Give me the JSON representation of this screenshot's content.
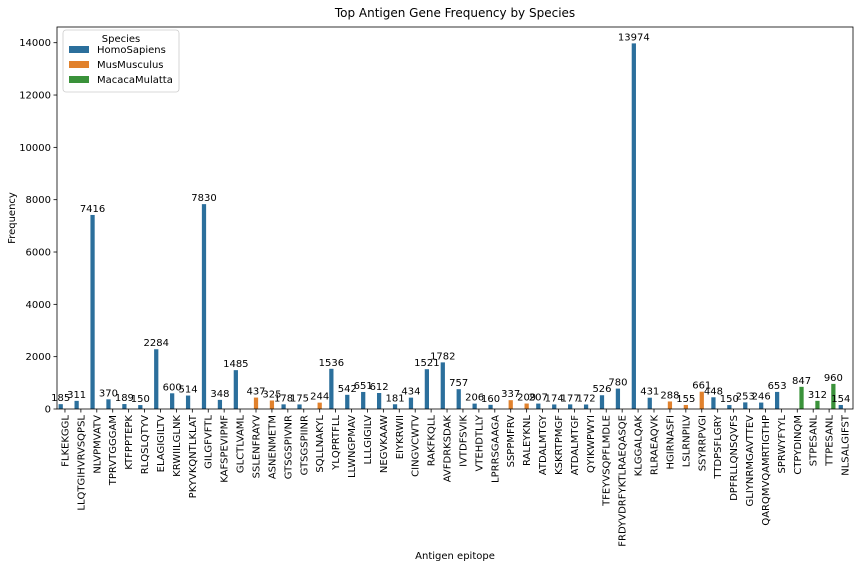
{
  "chart_data": {
    "type": "bar",
    "title": "Top Antigen Gene Frequency by Species",
    "xlabel": "Antigen epitope",
    "ylabel": "Frequency",
    "ylim": [
      0,
      14600
    ],
    "yticks": [
      0,
      2000,
      4000,
      6000,
      8000,
      10000,
      12000,
      14000
    ],
    "grid": false,
    "legend": {
      "title": "Species",
      "placement": "top-left",
      "entries": [
        {
          "name": "HomoSapiens",
          "color": "#2b6f9c"
        },
        {
          "name": "MusMusculus",
          "color": "#e1812c"
        },
        {
          "name": "MacacaMulatta",
          "color": "#3a923a"
        }
      ]
    },
    "bars": [
      {
        "epitope": "FLKEKGGL",
        "species": 0,
        "value": 185
      },
      {
        "epitope": "LLQTGIHVRVSQPSL",
        "species": 0,
        "value": 311
      },
      {
        "epitope": "NLVPMVATV",
        "species": 0,
        "value": 7416
      },
      {
        "epitope": "TPRVTGGGAM",
        "species": 0,
        "value": 370
      },
      {
        "epitope": "KTFPPTEPK",
        "species": 0,
        "value": 189
      },
      {
        "epitope": "RLQSLQTYV",
        "species": 0,
        "value": 150
      },
      {
        "epitope": "ELAGIGILTV",
        "species": 0,
        "value": 2284
      },
      {
        "epitope": "KRWIILGLNK",
        "species": 0,
        "value": 600
      },
      {
        "epitope": "PKYVKQNTLKLAT",
        "species": 0,
        "value": 514
      },
      {
        "epitope": "GILGFVFTL",
        "species": 0,
        "value": 7830
      },
      {
        "epitope": "KAFSPEVIPMF",
        "species": 0,
        "value": 348
      },
      {
        "epitope": "GLCTLVAML",
        "species": 0,
        "value": 1485
      },
      {
        "epitope": "SSLENFRAYV",
        "species": 1,
        "value": 437
      },
      {
        "epitope": "ASNENMETM",
        "species": 1,
        "value": 325
      },
      {
        "epitope": "GTSGSPIVNR",
        "species": 0,
        "value": 178
      },
      {
        "epitope": "GTSGSPIINR",
        "species": 0,
        "value": 175
      },
      {
        "epitope": "SQLLNAKYL",
        "species": 1,
        "value": 244
      },
      {
        "epitope": "YLQPRTFLL",
        "species": 0,
        "value": 1536
      },
      {
        "epitope": "LLWNGPMAV",
        "species": 0,
        "value": 542
      },
      {
        "epitope": "LLLGIGILV",
        "species": 0,
        "value": 651
      },
      {
        "epitope": "NEGVKAAW",
        "species": 0,
        "value": 612
      },
      {
        "epitope": "EIYKRWII",
        "species": 0,
        "value": 181
      },
      {
        "epitope": "CINGVCWTV",
        "species": 0,
        "value": 434
      },
      {
        "epitope": "RAKFKQLL",
        "species": 0,
        "value": 1521
      },
      {
        "epitope": "AVFDRKSDAK",
        "species": 0,
        "value": 1782
      },
      {
        "epitope": "IVTDFSVIK",
        "species": 0,
        "value": 757
      },
      {
        "epitope": "VTEHDTLLY",
        "species": 0,
        "value": 206
      },
      {
        "epitope": "LPRRSGAAGA",
        "species": 0,
        "value": 160
      },
      {
        "epitope": "SSPPMFRV",
        "species": 1,
        "value": 337
      },
      {
        "epitope": "RALEYKNL",
        "species": 1,
        "value": 209
      },
      {
        "epitope": "ATDALMTGY",
        "species": 0,
        "value": 207
      },
      {
        "epitope": "KSKRTPMGF",
        "species": 0,
        "value": 174
      },
      {
        "epitope": "ATDALMTGF",
        "species": 0,
        "value": 177
      },
      {
        "epitope": "QYIKWPWYI",
        "species": 0,
        "value": 172
      },
      {
        "epitope": "TFEYVSQPFLMDLE",
        "species": 0,
        "value": 526
      },
      {
        "epitope": "FRDYVDRFYKTLRAEQASQE",
        "species": 0,
        "value": 780
      },
      {
        "epitope": "KLGGALQAK",
        "species": 0,
        "value": 13974
      },
      {
        "epitope": "RLRAEAQVK",
        "species": 0,
        "value": 431
      },
      {
        "epitope": "HGIRNASFI",
        "species": 1,
        "value": 288
      },
      {
        "epitope": "LSLRNPILV",
        "species": 1,
        "value": 155
      },
      {
        "epitope": "SSYRRPVGI",
        "species": 1,
        "value": 661
      },
      {
        "epitope": "TTDPSFLGRY",
        "species": 0,
        "value": 448
      },
      {
        "epitope": "DPFRLLQNSQVFS",
        "species": 0,
        "value": 150
      },
      {
        "epitope": "GLIYNRMGAVTTEV",
        "species": 0,
        "value": 253
      },
      {
        "epitope": "QARQMVQAMRTIGTHP",
        "species": 0,
        "value": 246
      },
      {
        "epitope": "SPRWYFYYL",
        "species": 0,
        "value": 653
      },
      {
        "epitope": "CTPYDINQM",
        "species": 2,
        "value": 847
      },
      {
        "epitope": "STPESANL",
        "species": 2,
        "value": 312
      },
      {
        "epitope": "TTPESANL",
        "species": 2,
        "value": 960
      },
      {
        "epitope": "NLSALGIFST",
        "species": 0,
        "value": 154
      }
    ]
  }
}
